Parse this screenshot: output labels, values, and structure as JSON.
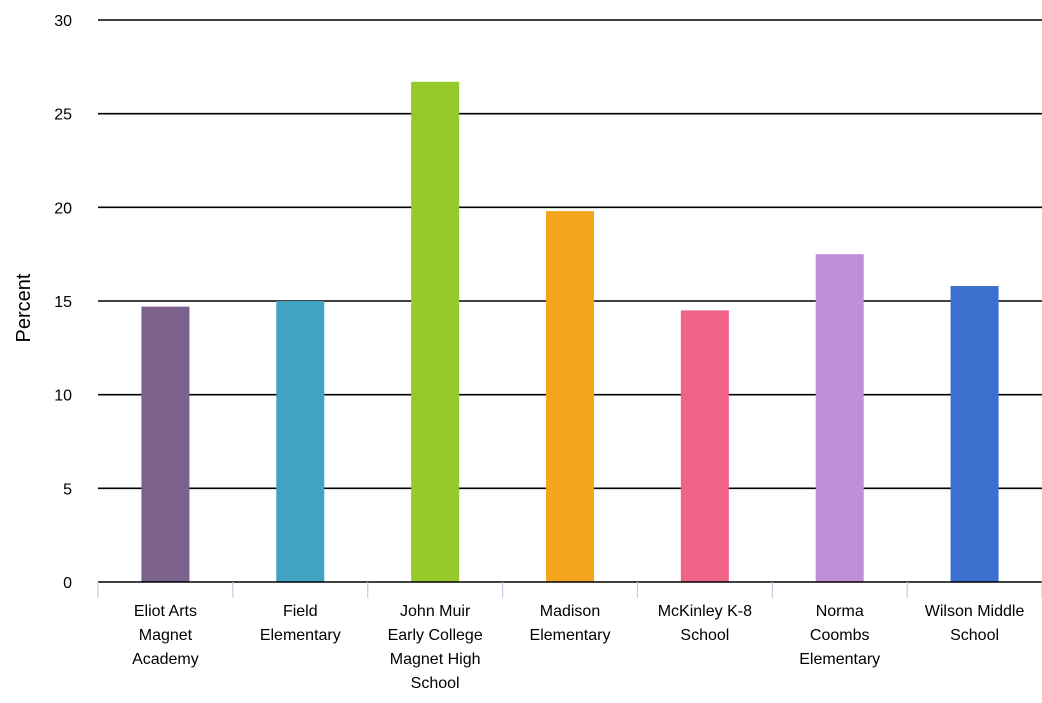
{
  "chart_data": {
    "type": "bar",
    "title": "",
    "xlabel": "",
    "ylabel": "Percent",
    "ylim": [
      0,
      30
    ],
    "yticks": [
      0,
      5,
      10,
      15,
      20,
      25,
      30
    ],
    "ytick_labels": [
      "0",
      "5",
      "10",
      "15",
      "20",
      "25",
      "30"
    ],
    "grid": true,
    "legend": "none",
    "categories": [
      [
        "Eliot Arts",
        "Magnet",
        "Academy"
      ],
      [
        "Field",
        "Elementary"
      ],
      [
        "John Muir",
        "Early College",
        "Magnet High",
        "School"
      ],
      [
        "Madison",
        "Elementary"
      ],
      [
        "McKinley K-8",
        "School"
      ],
      [
        "Norma",
        "Coombs",
        "Elementary"
      ],
      [
        "Wilson Middle",
        "School"
      ]
    ],
    "values": [
      14.7,
      15.0,
      26.7,
      19.8,
      14.5,
      17.5,
      15.8
    ],
    "colors": [
      "#7b618c",
      "#3fa3c2",
      "#96c92a",
      "#f4a41d",
      "#ef6386",
      "#bf8fdb",
      "#3d6fce"
    ]
  }
}
